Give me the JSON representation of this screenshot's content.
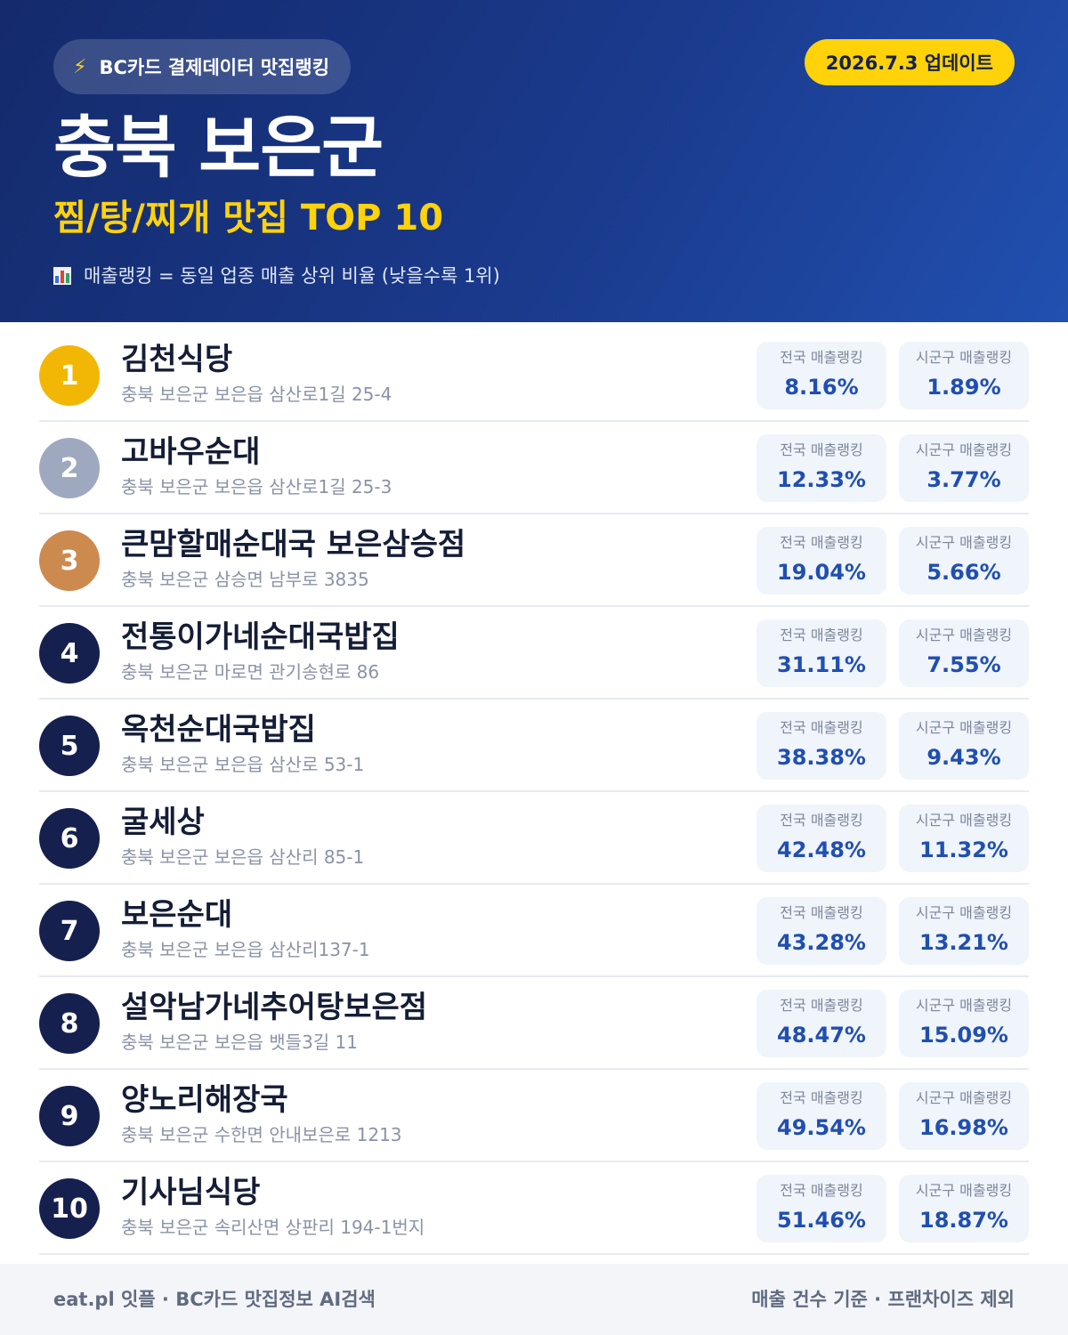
{
  "header": {
    "source_label": "BC카드 결제데이터 맛집랭킹",
    "update_label": "2026.7.3 업데이트",
    "region": "충북 보은군",
    "category_title": "찜/탕/찌개 맛집 TOP 10",
    "note": "매출랭킹 = 동일 업종 매출 상위 비율 (낮을수록 1위)",
    "icons": {
      "source": "lightning-icon",
      "note": "bar-chart-icon"
    }
  },
  "labels": {
    "national": "전국 매출랭킹",
    "local": "시군구 매출랭킹"
  },
  "colors": {
    "header_start": "#142a6b",
    "header_end": "#2150b0",
    "accent_yellow": "#ffd20a",
    "gold": "#f2b705",
    "silver": "#9ea9bf",
    "bronze": "#cd8a4e",
    "navy": "#16204f",
    "value_blue": "#1f4fb0"
  },
  "restaurants": [
    {
      "rank": "1",
      "name": "김천식당",
      "address": "충북 보은군 보은읍 삼산로1길 25-4",
      "national": "8.16%",
      "local": "1.89%",
      "medal": "gold"
    },
    {
      "rank": "2",
      "name": "고바우순대",
      "address": "충북 보은군 보은읍 삼산로1길 25-3",
      "national": "12.33%",
      "local": "3.77%",
      "medal": "silver"
    },
    {
      "rank": "3",
      "name": "큰맘할매순대국 보은삼승점",
      "address": "충북 보은군 삼승면 남부로 3835",
      "national": "19.04%",
      "local": "5.66%",
      "medal": "bronze"
    },
    {
      "rank": "4",
      "name": "전통이가네순대국밥집",
      "address": "충북 보은군 마로면 관기송현로 86",
      "national": "31.11%",
      "local": "7.55%",
      "medal": "navy"
    },
    {
      "rank": "5",
      "name": "옥천순대국밥집",
      "address": "충북 보은군 보은읍 삼산로 53-1",
      "national": "38.38%",
      "local": "9.43%",
      "medal": "navy"
    },
    {
      "rank": "6",
      "name": "굴세상",
      "address": "충북 보은군 보은읍 삼산리 85-1",
      "national": "42.48%",
      "local": "11.32%",
      "medal": "navy"
    },
    {
      "rank": "7",
      "name": "보은순대",
      "address": "충북 보은군 보은읍 삼산리137-1",
      "national": "43.28%",
      "local": "13.21%",
      "medal": "navy"
    },
    {
      "rank": "8",
      "name": "설악남가네추어탕보은점",
      "address": "충북 보은군 보은읍 뱃들3길 11",
      "national": "48.47%",
      "local": "15.09%",
      "medal": "navy"
    },
    {
      "rank": "9",
      "name": "양노리해장국",
      "address": "충북 보은군 수한면 안내보은로 1213",
      "national": "49.54%",
      "local": "16.98%",
      "medal": "navy"
    },
    {
      "rank": "10",
      "name": "기사님식당",
      "address": "충북 보은군 속리산면 상판리 194-1번지",
      "national": "51.46%",
      "local": "18.87%",
      "medal": "navy"
    }
  ],
  "footer": {
    "left": "eat.pl 잇플 · BC카드 맛집정보 AI검색",
    "right": "매출 건수 기준 · 프랜차이즈 제외"
  }
}
